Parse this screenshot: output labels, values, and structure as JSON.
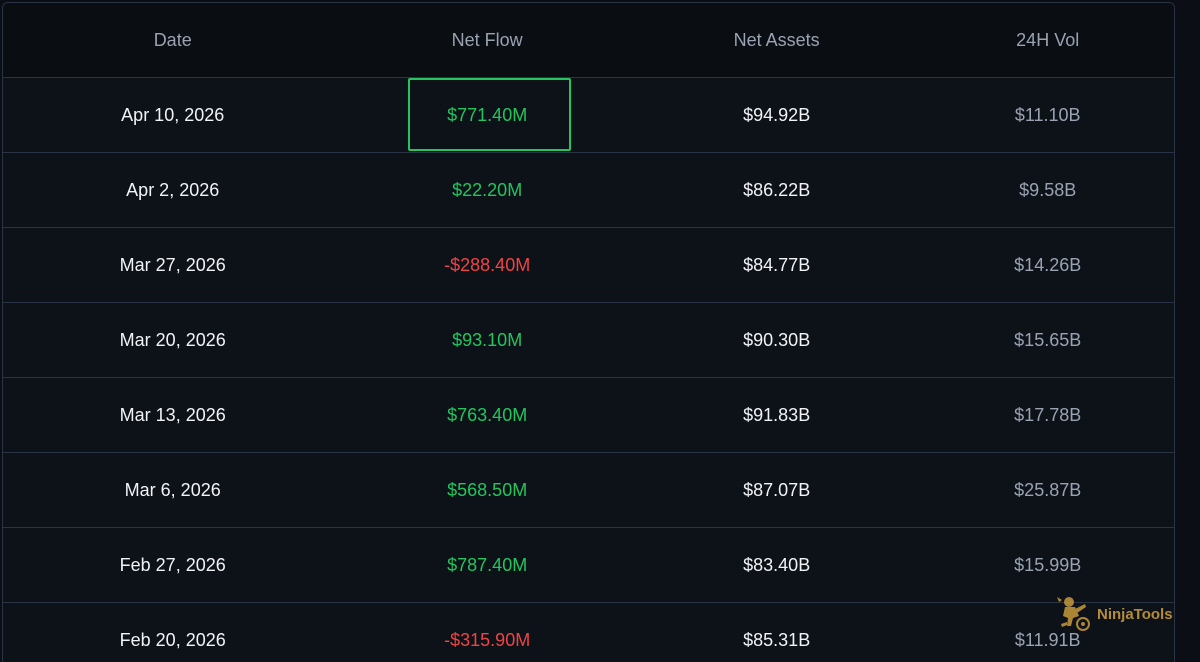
{
  "table": {
    "headers": {
      "date": "Date",
      "net_flow": "Net Flow",
      "net_assets": "Net Assets",
      "vol_24h": "24H Vol"
    },
    "rows": [
      {
        "date": "Apr 10, 2026",
        "net_flow": "$771.40M",
        "flow_sign": "pos",
        "net_assets": "$94.92B",
        "vol_24h": "$11.10B",
        "selected": true
      },
      {
        "date": "Apr 2, 2026",
        "net_flow": "$22.20M",
        "flow_sign": "pos",
        "net_assets": "$86.22B",
        "vol_24h": "$9.58B"
      },
      {
        "date": "Mar 27, 2026",
        "net_flow": "-$288.40M",
        "flow_sign": "neg",
        "net_assets": "$84.77B",
        "vol_24h": "$14.26B"
      },
      {
        "date": "Mar 20, 2026",
        "net_flow": "$93.10M",
        "flow_sign": "pos",
        "net_assets": "$90.30B",
        "vol_24h": "$15.65B"
      },
      {
        "date": "Mar 13, 2026",
        "net_flow": "$763.40M",
        "flow_sign": "pos",
        "net_assets": "$91.83B",
        "vol_24h": "$17.78B"
      },
      {
        "date": "Mar 6, 2026",
        "net_flow": "$568.50M",
        "flow_sign": "pos",
        "net_assets": "$87.07B",
        "vol_24h": "$25.87B"
      },
      {
        "date": "Feb 27, 2026",
        "net_flow": "$787.40M",
        "flow_sign": "pos",
        "net_assets": "$83.40B",
        "vol_24h": "$15.99B"
      },
      {
        "date": "Feb 20, 2026",
        "net_flow": "-$315.90M",
        "flow_sign": "neg",
        "net_assets": "$85.31B",
        "vol_24h": "$11.91B"
      }
    ]
  },
  "watermark": {
    "text": "NinjaTools",
    "icon": "ninja-logo-icon"
  },
  "colors": {
    "positive": "#22c55e",
    "negative": "#ef4444",
    "background": "#0d1118",
    "header_background": "#0a0d12",
    "border": "#2a3445",
    "muted_text": "#9aa3b2",
    "primary_text": "#f1f3f6",
    "brand_gold": "#c79a3c"
  }
}
